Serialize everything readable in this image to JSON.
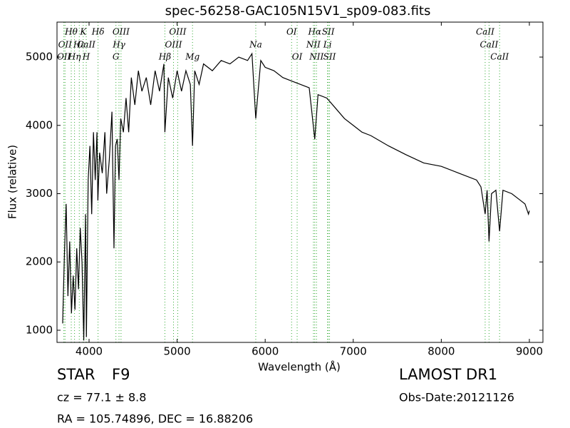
{
  "chart_data": {
    "type": "line",
    "title": "spec-56258-GAC105N15V1_sp09-083.fits",
    "x_label": "Wavelength (Å)",
    "y_label": "Flux (relative)",
    "color": "#000000",
    "line_color": "#33aa33",
    "xlim": [
      3636,
      9154
    ],
    "ylim": [
      822,
      5512
    ],
    "xticks": [
      4000,
      5000,
      6000,
      7000,
      8000,
      9000
    ],
    "yticks": [
      1000,
      2000,
      3000,
      4000,
      5000
    ],
    "x": [
      3700,
      3720,
      3740,
      3760,
      3780,
      3800,
      3820,
      3840,
      3860,
      3880,
      3900,
      3920,
      3940,
      3960,
      3970,
      3990,
      4010,
      4030,
      4050,
      4070,
      4090,
      4100,
      4120,
      4150,
      4180,
      4200,
      4230,
      4260,
      4283,
      4300,
      4320,
      4340,
      4360,
      4390,
      4420,
      4450,
      4480,
      4520,
      4560,
      4600,
      4650,
      4700,
      4750,
      4800,
      4850,
      4861,
      4900,
      4950,
      5000,
      5050,
      5100,
      5150,
      5175,
      5200,
      5250,
      5300,
      5400,
      5500,
      5600,
      5700,
      5800,
      5850,
      5893,
      5950,
      6000,
      6100,
      6200,
      6300,
      6400,
      6500,
      6563,
      6600,
      6700,
      6800,
      6900,
      7000,
      7100,
      7200,
      7400,
      7600,
      7800,
      8000,
      8200,
      8400,
      8450,
      8498,
      8520,
      8542,
      8570,
      8620,
      8662,
      8700,
      8800,
      8900,
      8950,
      8990,
      9000
    ],
    "values": [
      1100,
      2100,
      2850,
      1500,
      2300,
      1250,
      1800,
      1300,
      2200,
      1600,
      2500,
      2000,
      850,
      2700,
      900,
      3200,
      3700,
      2700,
      3900,
      3200,
      3900,
      2900,
      3600,
      3300,
      3900,
      3000,
      3500,
      4200,
      2200,
      3700,
      3800,
      3200,
      4100,
      3900,
      4400,
      3900,
      4700,
      4300,
      4800,
      4500,
      4700,
      4300,
      4800,
      4500,
      4900,
      3900,
      4700,
      4400,
      4800,
      4500,
      4800,
      4600,
      3700,
      4800,
      4600,
      4900,
      4800,
      4950,
      4900,
      5000,
      4950,
      5050,
      4100,
      4950,
      4850,
      4800,
      4700,
      4650,
      4600,
      4550,
      3800,
      4450,
      4400,
      4250,
      4100,
      4000,
      3900,
      3850,
      3700,
      3570,
      3450,
      3400,
      3300,
      3200,
      3100,
      2700,
      3050,
      2300,
      3000,
      3050,
      2450,
      3050,
      3000,
      2900,
      2850,
      2700,
      2750
    ],
    "spectral_lines": [
      [
        {
          "wavelength": 3798,
          "label": "Hθ"
        },
        {
          "wavelength": 3934,
          "label": "K"
        },
        {
          "wavelength": 4102,
          "label": "Hδ"
        },
        {
          "wavelength": 4363,
          "label": "OIII"
        },
        {
          "wavelength": 5007,
          "label": "OIII"
        },
        {
          "wavelength": 6300,
          "label": "OI"
        },
        {
          "wavelength": 6563,
          "label": "Hα"
        },
        {
          "wavelength": 6716,
          "label": "SII"
        },
        {
          "wavelength": 8498,
          "label": "CaII"
        }
      ],
      [
        {
          "wavelength": 3727,
          "label": "OII"
        },
        {
          "wavelength": 3889,
          "label": "Hε"
        },
        {
          "wavelength": 3968,
          "label": "CaII"
        },
        {
          "wavelength": 4340,
          "label": "Hγ"
        },
        {
          "wavelength": 4959,
          "label": "OIII"
        },
        {
          "wavelength": 5893,
          "label": "Na"
        },
        {
          "wavelength": 6548,
          "label": "NII"
        },
        {
          "wavelength": 6708,
          "label": "Li"
        },
        {
          "wavelength": 8542,
          "label": "CaII"
        }
      ],
      [
        {
          "wavelength": 3714,
          "label": "OII"
        },
        {
          "wavelength": 3835,
          "label": "Hη"
        },
        {
          "wavelength": 3968,
          "label": "H"
        },
        {
          "wavelength": 4305,
          "label": "G"
        },
        {
          "wavelength": 4861,
          "label": "Hβ"
        },
        {
          "wavelength": 5175,
          "label": "Mg"
        },
        {
          "wavelength": 6363,
          "label": "OI"
        },
        {
          "wavelength": 6583,
          "label": "NII"
        },
        {
          "wavelength": 6731,
          "label": "SII"
        },
        {
          "wavelength": 8662,
          "label": "CaII"
        }
      ]
    ],
    "class": "STAR",
    "subclass": "F9",
    "cz": "cz = 77.1 ± 8.8",
    "coords": "RA = 105.74896, DEC = 16.88206",
    "survey": "LAMOST DR1",
    "obs_date": "Obs-Date:20121126"
  }
}
